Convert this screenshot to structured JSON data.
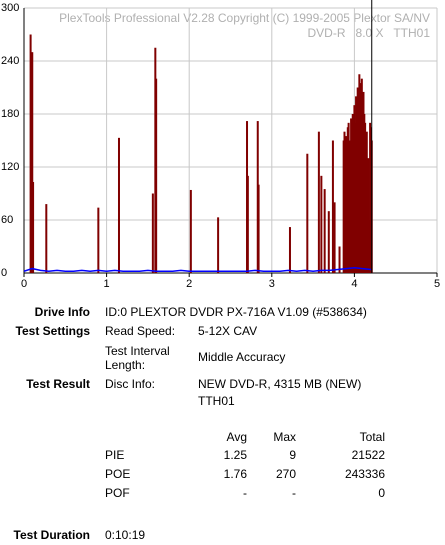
{
  "chart_data": {
    "type": "bar",
    "watermark": [
      "PlexTools Professional V2.28 Copyright (C) 1999-2005 Plextor SA/NV",
      "DVD-R   8.0 X   TTH01"
    ],
    "xlim": [
      0,
      5
    ],
    "xticks": [
      0,
      1,
      2,
      3,
      4,
      5
    ],
    "ylim": [
      0,
      300
    ],
    "yticks": [
      0,
      60,
      120,
      180,
      240,
      300
    ],
    "grid": true,
    "end_marker_x": 4.21,
    "series": [
      {
        "type": "line",
        "color": "#0000ff",
        "x": [
          0,
          0.1,
          0.2,
          0.3,
          0.4,
          0.5,
          0.6,
          0.7,
          0.8,
          0.9,
          1,
          1.1,
          1.2,
          1.3,
          1.4,
          1.5,
          1.6,
          1.7,
          1.8,
          1.9,
          2,
          2.1,
          2.2,
          2.3,
          2.4,
          2.5,
          2.6,
          2.7,
          2.8,
          2.9,
          3,
          3.1,
          3.2,
          3.3,
          3.4,
          3.5,
          3.6,
          3.7,
          3.8,
          3.9,
          4,
          4.1,
          4.2
        ],
        "values": [
          2,
          5,
          3,
          2,
          3,
          2,
          2,
          3,
          2,
          3,
          2,
          3,
          2,
          2,
          2,
          3,
          2,
          2,
          2,
          3,
          2,
          2,
          2,
          2,
          2,
          2,
          2,
          2,
          3,
          2,
          2,
          2,
          3,
          2,
          3,
          2,
          3,
          3,
          4,
          5,
          6,
          5,
          4
        ]
      },
      {
        "type": "bar",
        "color": "#800000",
        "x": [
          0.08,
          0.1,
          0.11,
          0.27,
          0.9,
          1.15,
          1.56,
          1.59,
          1.6,
          2.02,
          2.35,
          2.7,
          2.71,
          2.83,
          2.84,
          3.22,
          3.43,
          3.57,
          3.6,
          3.64,
          3.69,
          3.74,
          3.76,
          3.82,
          3.87,
          3.88,
          3.89,
          3.9,
          3.91,
          3.92,
          3.93,
          3.94,
          3.95,
          3.96,
          3.97,
          3.98,
          3.99,
          4,
          4.01,
          4.02,
          4.03,
          4.04,
          4.05,
          4.06,
          4.07,
          4.08,
          4.09,
          4.1,
          4.11,
          4.12,
          4.13,
          4.14,
          4.15,
          4.16,
          4.17,
          4.18,
          4.19,
          4.2,
          4.21
        ],
        "values": [
          270,
          250,
          103,
          78,
          74,
          153,
          90,
          255,
          220,
          94,
          63,
          172,
          110,
          172,
          100,
          52,
          135,
          160,
          110,
          95,
          70,
          150,
          80,
          30,
          150,
          160,
          140,
          155,
          130,
          165,
          170,
          145,
          150,
          175,
          160,
          180,
          150,
          190,
          170,
          200,
          185,
          210,
          195,
          225,
          215,
          200,
          220,
          190,
          205,
          180,
          170,
          150,
          160,
          100,
          130,
          60,
          170,
          165,
          150
        ]
      }
    ]
  },
  "info": {
    "drive_info": {
      "label": "Drive Info",
      "value": "ID:0 PLEXTOR DVDR PX-716A V1.09 (#538634)"
    },
    "test_settings": {
      "label": "Test Settings",
      "read_speed_label": "Read Speed:",
      "read_speed": "5-12X CAV",
      "interval_label": "Test Interval Length:",
      "interval": "Middle Accuracy"
    },
    "test_result": {
      "label": "Test Result",
      "disc_info_label": "Disc Info:",
      "disc_info": [
        "NEW DVD-R, 4315 MB (NEW)",
        "TTH01"
      ]
    },
    "table": {
      "columns": [
        "Avg",
        "Max",
        "Total"
      ],
      "rows": [
        {
          "name": "PIE",
          "cells": [
            1.25,
            9,
            21522
          ]
        },
        {
          "name": "POE",
          "cells": [
            1.76,
            270,
            243336
          ]
        },
        {
          "name": "POF",
          "cells": [
            "-",
            "-",
            0
          ]
        }
      ]
    },
    "duration": {
      "label": "Test Duration",
      "value": "0:10:19"
    }
  }
}
